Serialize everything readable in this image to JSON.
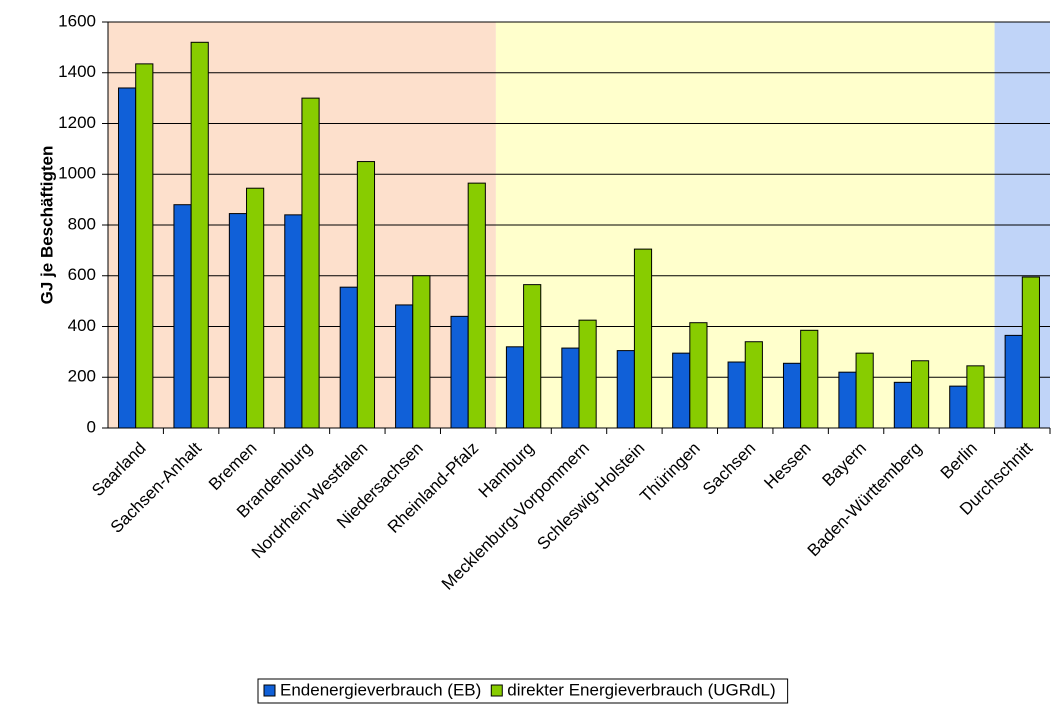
{
  "chart_data": {
    "type": "bar",
    "y_axis_label": "GJ je Beschäftigten",
    "categories": [
      "Saarland",
      "Sachsen-Anhalt",
      "Bremen",
      "Brandenburg",
      "Nordrhein-Westfalen",
      "Niedersachsen",
      "Rheinland-Pfalz",
      "Hamburg",
      "Mecklenburg-Vorpommern",
      "Schleswig-Holstein",
      "Thüringen",
      "Sachsen",
      "Hessen",
      "Bayern",
      "Baden-Württemberg",
      "Berlin",
      "Durchschnitt"
    ],
    "series": [
      {
        "name": "Endenergieverbrauch (EB)",
        "color": "#1060d8",
        "values": [
          1340,
          880,
          845,
          840,
          555,
          485,
          440,
          320,
          315,
          305,
          295,
          260,
          255,
          220,
          180,
          165,
          365
        ]
      },
      {
        "name": "direkter Energieverbrauch (UGRdL)",
        "color": "#88cc00",
        "values": [
          1435,
          1520,
          945,
          1300,
          1050,
          600,
          965,
          565,
          425,
          705,
          415,
          340,
          385,
          295,
          265,
          245,
          595
        ]
      }
    ],
    "ylim": [
      0,
      1600
    ],
    "yticks": [
      0,
      200,
      400,
      600,
      800,
      1000,
      1200,
      1400,
      1600
    ],
    "grid": true,
    "background_colors": [
      "#fde0cc",
      "#ffffcc",
      "#c0d4f8"
    ],
    "legend": "bottom"
  }
}
